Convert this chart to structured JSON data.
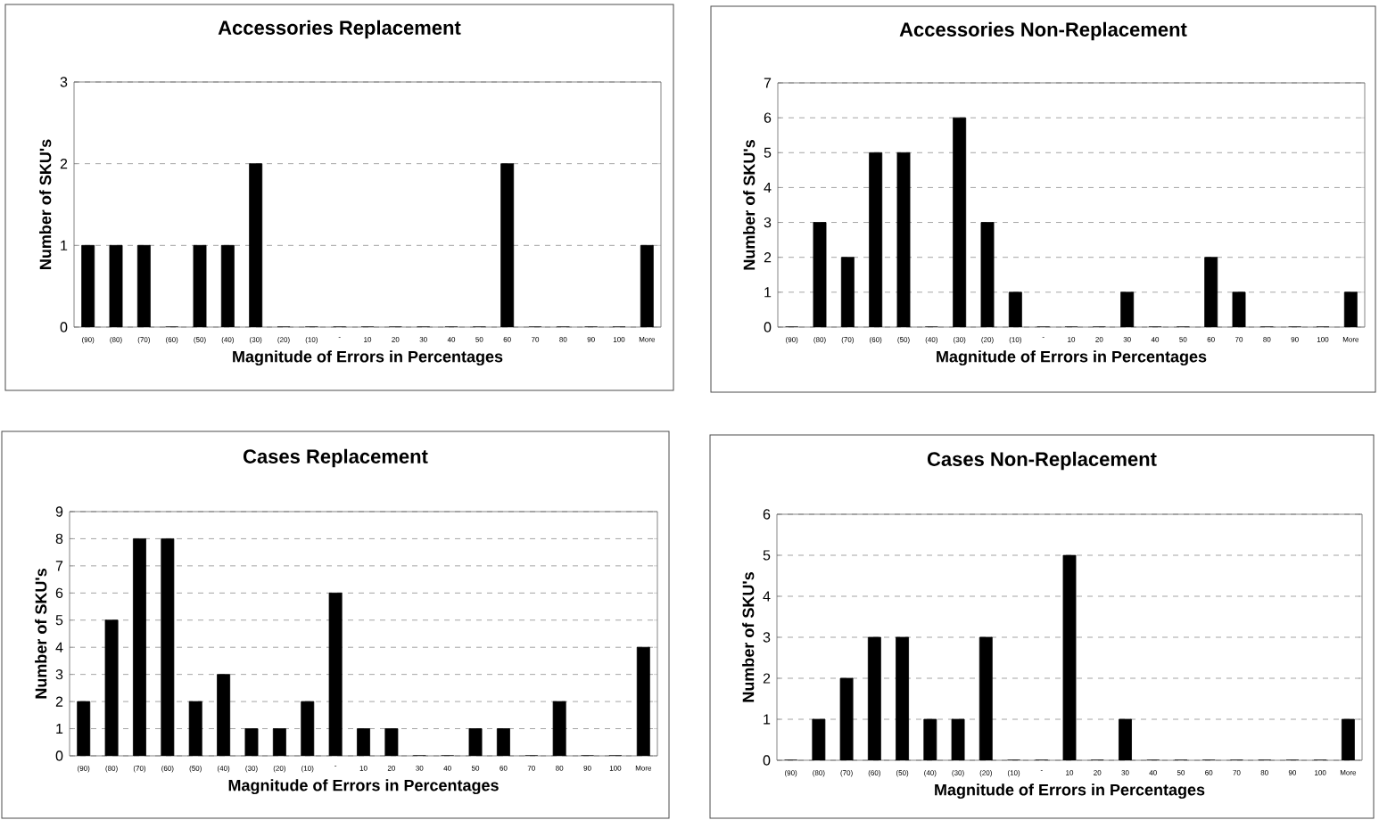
{
  "chart_data": [
    {
      "type": "bar",
      "title": "Accessories Replacement",
      "xlabel": "Magnitude of Errors in Percentages",
      "ylabel": "Number of SKU's",
      "categories": [
        "(90)",
        "(80)",
        "(70)",
        "(60)",
        "(50)",
        "(40)",
        "(30)",
        "(20)",
        "(10)",
        "-",
        "10",
        "20",
        "30",
        "40",
        "50",
        "60",
        "70",
        "80",
        "90",
        "100",
        "More"
      ],
      "values": [
        1,
        1,
        1,
        0,
        1,
        1,
        2,
        0,
        0,
        0,
        0,
        0,
        0,
        0,
        0,
        2,
        0,
        0,
        0,
        0,
        1
      ],
      "color": "#000000",
      "ylim": [
        0,
        3
      ],
      "yticks": [
        0,
        1,
        2,
        3
      ],
      "grid": "y"
    },
    {
      "type": "bar",
      "title": "Accessories Non-Replacement",
      "xlabel": "Magnitude of Errors in Percentages",
      "ylabel": "Number of SKU's",
      "categories": [
        "(90)",
        "(80)",
        "(70)",
        "(60)",
        "(50)",
        "(40)",
        "(30)",
        "(20)",
        "(10)",
        "-",
        "10",
        "20",
        "30",
        "40",
        "50",
        "60",
        "70",
        "80",
        "90",
        "100",
        "More"
      ],
      "values": [
        0,
        3,
        2,
        5,
        5,
        0,
        6,
        3,
        1,
        0,
        0,
        0,
        1,
        0,
        0,
        2,
        1,
        0,
        0,
        0,
        1
      ],
      "color": "#000000",
      "ylim": [
        0,
        7
      ],
      "yticks": [
        0,
        1,
        2,
        3,
        4,
        5,
        6,
        7
      ],
      "grid": "y"
    },
    {
      "type": "bar",
      "title": "Cases Replacement",
      "xlabel": "Magnitude of Errors in Percentages",
      "ylabel": "Number of SKU's",
      "categories": [
        "(90)",
        "(80)",
        "(70)",
        "(60)",
        "(50)",
        "(40)",
        "(30)",
        "(20)",
        "(10)",
        "-",
        "10",
        "20",
        "30",
        "40",
        "50",
        "60",
        "70",
        "80",
        "90",
        "100",
        "More"
      ],
      "values": [
        2,
        5,
        8,
        8,
        2,
        3,
        1,
        1,
        2,
        6,
        1,
        1,
        0,
        0,
        1,
        1,
        0,
        2,
        0,
        0,
        4
      ],
      "color": "#000000",
      "ylim": [
        0,
        9
      ],
      "yticks": [
        0,
        1,
        2,
        3,
        4,
        5,
        6,
        7,
        8,
        9
      ],
      "grid": "y"
    },
    {
      "type": "bar",
      "title": "Cases Non-Replacement",
      "xlabel": "Magnitude of Errors in Percentages",
      "ylabel": "Number of SKU's",
      "categories": [
        "(90)",
        "(80)",
        "(70)",
        "(60)",
        "(50)",
        "(40)",
        "(30)",
        "(20)",
        "(10)",
        "-",
        "10",
        "20",
        "30",
        "40",
        "50",
        "60",
        "70",
        "80",
        "90",
        "100",
        "More"
      ],
      "values": [
        0,
        1,
        2,
        3,
        3,
        1,
        1,
        3,
        0,
        0,
        5,
        0,
        1,
        0,
        0,
        0,
        0,
        0,
        0,
        0,
        1
      ],
      "color": "#000000",
      "ylim": [
        0,
        6
      ],
      "yticks": [
        0,
        1,
        2,
        3,
        4,
        5,
        6
      ],
      "grid": "y"
    }
  ]
}
